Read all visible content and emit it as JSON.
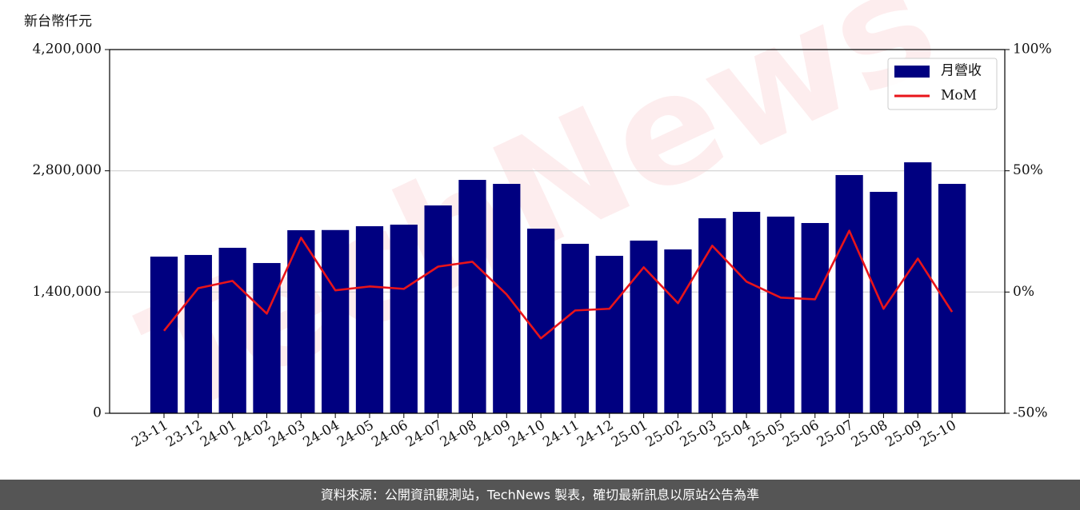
{
  "chart_data": {
    "type": "bar",
    "y_label": "新台幣仟元",
    "watermark": "TechNews",
    "footer": "資料來源：公開資訊觀測站，TechNews 製表，確切最新訊息以原站公告為準",
    "categories": [
      "23-11",
      "23-12",
      "24-01",
      "24-02",
      "24-03",
      "24-04",
      "24-05",
      "24-06",
      "24-07",
      "24-08",
      "24-09",
      "24-10",
      "24-11",
      "24-12",
      "25-01",
      "25-02",
      "25-03",
      "25-04",
      "25-05",
      "25-06",
      "25-07",
      "25-08",
      "25-09",
      "25-10"
    ],
    "series": [
      {
        "name": "月營收",
        "type": "bar",
        "color": "#000080",
        "values": [
          1809000,
          1828000,
          1911000,
          1735000,
          2114000,
          2116000,
          2160000,
          2178000,
          2400000,
          2695000,
          2649000,
          2132000,
          1957000,
          1818000,
          1994000,
          1892000,
          2252000,
          2326000,
          2271000,
          2197000,
          2751000,
          2557000,
          2898000,
          2649000
        ]
      },
      {
        "name": "MoM",
        "type": "line",
        "axis": "y2",
        "color": "#e8141a",
        "values": [
          -16,
          1.6,
          4.6,
          -8.9,
          22.4,
          0.7,
          2.3,
          1.3,
          10.5,
          12.5,
          -1,
          -19.1,
          -7.6,
          -6.9,
          10.2,
          -4.6,
          19.1,
          4.3,
          -2.3,
          -3,
          25.3,
          -6.9,
          13.8,
          -8.2
        ]
      }
    ],
    "ylim": [
      0,
      4200000
    ],
    "yticks": [
      0,
      {
        "value": 1400000,
        "label": "1,400,000"
      },
      {
        "value": 2800000,
        "label": "2,800,000"
      },
      {
        "value": 4200000,
        "label": "4,200,000"
      }
    ],
    "y2lim": [
      -50,
      100
    ],
    "y2ticks": [
      {
        "value": -50,
        "label": "-50%"
      },
      {
        "value": 0,
        "label": "0%"
      },
      {
        "value": 50,
        "label": "50%"
      },
      {
        "value": 100,
        "label": "100%"
      }
    ],
    "grid": true,
    "legend": "upper right"
  }
}
